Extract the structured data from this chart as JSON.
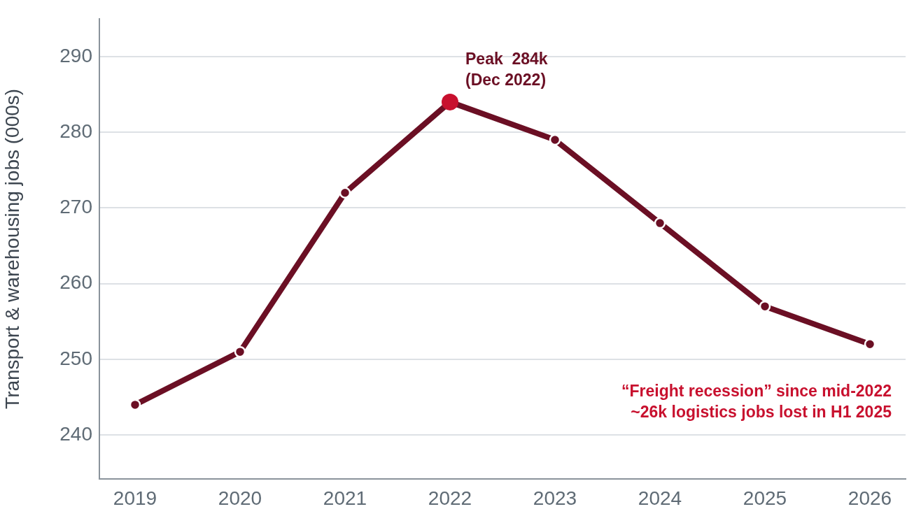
{
  "chart_data": {
    "type": "line",
    "ylabel": "Transport & warehousing jobs (000s)",
    "x": [
      2019,
      2020,
      2021,
      2022,
      2023,
      2024,
      2025,
      2026
    ],
    "series": [
      {
        "color": "#6b0f24",
        "values": [
          244,
          251,
          272,
          284,
          279,
          268,
          257,
          252
        ]
      },
      {
        "type": "scatter",
        "color": "#c8102e",
        "x": [
          2022
        ],
        "values": [
          284
        ]
      }
    ],
    "xlim": [
      2018.66,
      2026.34
    ],
    "xticks": [
      2019,
      2020,
      2021,
      2022,
      2023,
      2024,
      2025,
      2026
    ],
    "ylim": [
      234.2,
      295
    ],
    "yticks": [
      240,
      250,
      260,
      270,
      280,
      290
    ],
    "grid": "y",
    "marker": "circle",
    "line_style": "solid",
    "legend": false,
    "annotations": [
      {
        "text": "Peak  284k\n(Dec 2022)",
        "x": 2022,
        "y": 284
      },
      "“Freight recession” since mid-2022\n~26k logistics jobs lost in H1 2025"
    ]
  }
}
